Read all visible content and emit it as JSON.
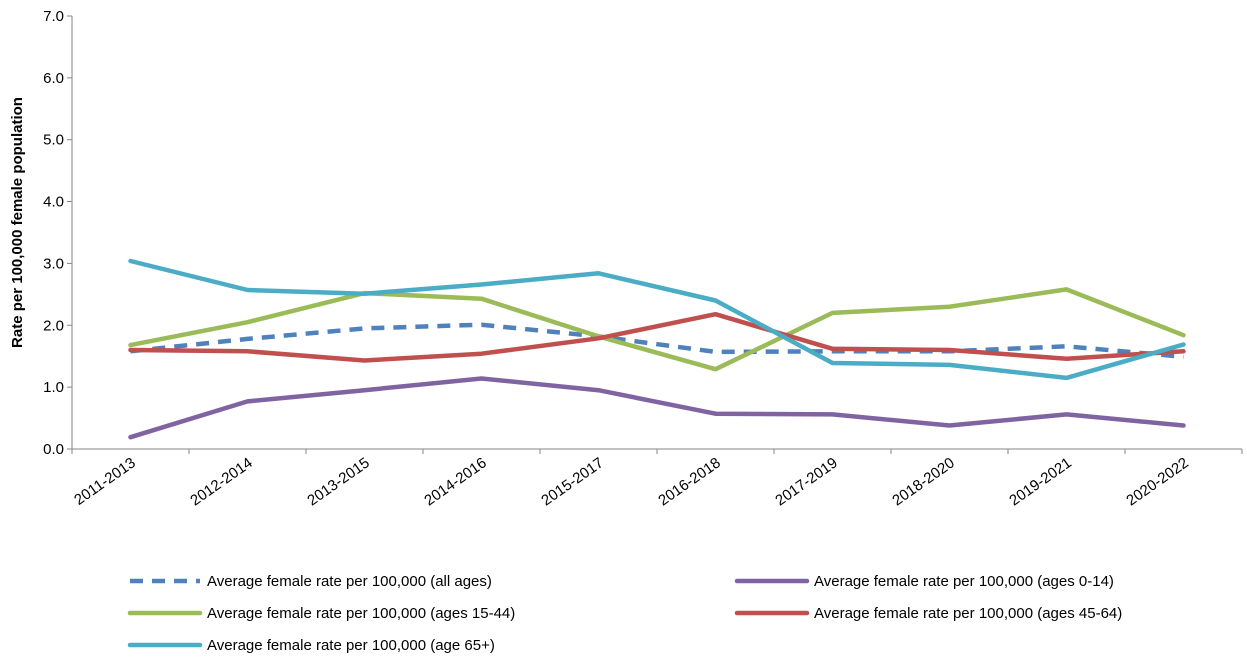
{
  "chart_data": {
    "type": "line",
    "title": "",
    "xlabel": "",
    "ylabel": "Rate per 100,000 female population",
    "ylim": [
      0,
      7
    ],
    "yticks": [
      "0.0",
      "1.0",
      "2.0",
      "3.0",
      "4.0",
      "5.0",
      "6.0",
      "7.0"
    ],
    "grid": false,
    "legend_position": "bottom",
    "categories": [
      "2011-2013",
      "2012-2014",
      "2013-2015",
      "2014-2016",
      "2015-2017",
      "2016-2018",
      "2017-2019",
      "2018-2020",
      "2019-2021",
      "2020-2022"
    ],
    "series": [
      {
        "name": "Average female rate per 100,000 (all ages)",
        "color": "#4F81BD",
        "dashed": true,
        "values": [
          1.58,
          1.78,
          1.95,
          2.01,
          1.82,
          1.57,
          1.58,
          1.58,
          1.66,
          1.49
        ]
      },
      {
        "name": "Average female rate per 100,000 (ages 0-14)",
        "color": "#8064A2",
        "dashed": false,
        "values": [
          0.19,
          0.77,
          0.95,
          1.14,
          0.95,
          0.57,
          0.56,
          0.38,
          0.56,
          0.38
        ]
      },
      {
        "name": "Average female rate per 100,000 (ages 15-44)",
        "color": "#9BBB59",
        "dashed": false,
        "values": [
          1.68,
          2.05,
          2.52,
          2.43,
          1.82,
          1.29,
          2.2,
          2.3,
          2.58,
          1.84
        ]
      },
      {
        "name": "Average female rate per 100,000 (ages 45-64)",
        "color": "#C0504D",
        "dashed": false,
        "values": [
          1.6,
          1.58,
          1.43,
          1.54,
          1.79,
          2.18,
          1.62,
          1.6,
          1.46,
          1.58
        ]
      },
      {
        "name": "Average female rate per 100,000 (age 65+)",
        "color": "#4BACC6",
        "dashed": false,
        "values": [
          3.04,
          2.57,
          2.51,
          2.66,
          2.84,
          2.4,
          1.39,
          1.36,
          1.15,
          1.69
        ]
      }
    ]
  }
}
